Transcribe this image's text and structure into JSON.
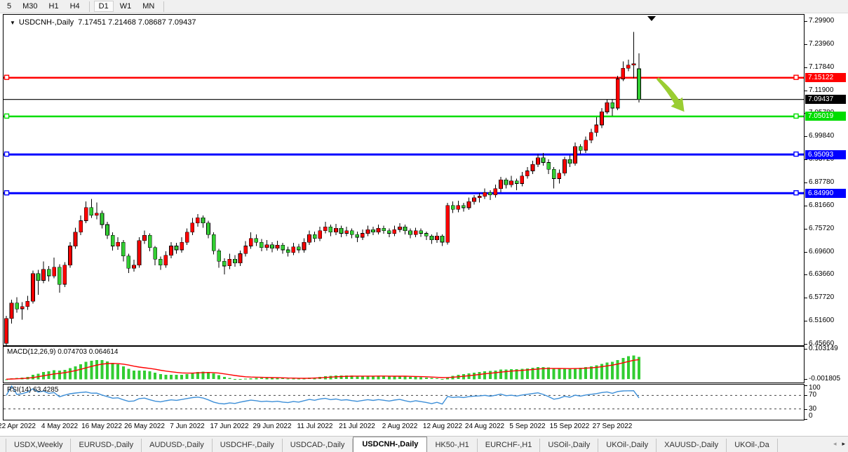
{
  "icons": {
    "dropdown": "▼",
    "tab_scroll_left": "◂",
    "tab_scroll_right": "▸",
    "bar_marker": "▼"
  },
  "toolbar": {
    "timeframes": [
      {
        "label": "5",
        "active": false,
        "group_end": false
      },
      {
        "label": "M30",
        "active": false,
        "group_end": false
      },
      {
        "label": "H1",
        "active": false,
        "group_end": false
      },
      {
        "label": "H4",
        "active": false,
        "group_end": true
      },
      {
        "label": "D1",
        "active": true,
        "group_end": false
      },
      {
        "label": "W1",
        "active": false,
        "group_end": false
      },
      {
        "label": "MN",
        "active": false,
        "group_end": true
      }
    ]
  },
  "chart_title": {
    "symbol": "USDCNH-,Daily",
    "ohlc": "7.17451 7.21468 7.08687 7.09437"
  },
  "chart_data": {
    "type": "candlestick",
    "symbol": "USDCNH",
    "timeframe": "Daily",
    "current_open": 7.17451,
    "current_high": 7.21468,
    "current_low": 7.08687,
    "current_close": 7.09437,
    "price_max": 7.299,
    "price_min": 6.4566,
    "price_axis_labels": [
      "7.29900",
      "7.23960",
      "7.17840",
      "7.11900",
      "7.05780",
      "6.99840",
      "6.93720",
      "6.87780",
      "6.81660",
      "6.75720",
      "6.69600",
      "6.63660",
      "6.57720",
      "6.51600",
      "6.45660"
    ],
    "date_labels": [
      "22 Apr 2022",
      "4 May 2022",
      "16 May 2022",
      "26 May 2022",
      "7 Jun 2022",
      "17 Jun 2022",
      "29 Jun 2022",
      "11 Jul 2022",
      "21 Jul 2022",
      "2 Aug 2022",
      "12 Aug 2022",
      "24 Aug 2022",
      "5 Sep 2022",
      "15 Sep 2022",
      "27 Sep 2022"
    ],
    "colors": {
      "bull": "#ff0000",
      "bear": "#32cd32",
      "wick": "#000000",
      "body_border": "#000000",
      "arrow": "#9acd32",
      "marker": "#000000",
      "macd_hist": "#32cd32",
      "macd_signal": "#ff0000",
      "rsi_line": "#3d8fd8",
      "rsi_level": "#444444"
    },
    "hlines": [
      {
        "price": 7.15122,
        "label": "7.15122",
        "color": "#ff0000",
        "width": 2.5,
        "handles": true
      },
      {
        "price": 7.05019,
        "label": "7.05019",
        "color": "#00dd00",
        "width": 2.5,
        "handles": true
      },
      {
        "price": 6.95093,
        "label": "6.95093",
        "color": "#0000ff",
        "width": 3,
        "handles": true
      },
      {
        "price": 6.8499,
        "label": "6.84990",
        "color": "#0000ff",
        "width": 3,
        "handles": true
      },
      {
        "price": 7.09437,
        "label": "7.09437",
        "color": "#000000",
        "width": 1.2,
        "handles": false
      }
    ],
    "candles": [
      [
        6.458,
        6.53,
        6.45,
        6.523
      ],
      [
        6.523,
        6.572,
        6.51,
        6.563
      ],
      [
        6.563,
        6.578,
        6.538,
        6.548
      ],
      [
        6.548,
        6.566,
        6.52,
        6.554
      ],
      [
        6.554,
        6.582,
        6.545,
        6.568
      ],
      [
        6.568,
        6.648,
        6.562,
        6.64
      ],
      [
        6.64,
        6.65,
        6.585,
        6.622
      ],
      [
        6.622,
        6.672,
        6.615,
        6.651
      ],
      [
        6.651,
        6.66,
        6.62,
        6.634
      ],
      [
        6.634,
        6.682,
        6.628,
        6.657
      ],
      [
        6.657,
        6.664,
        6.59,
        6.612
      ],
      [
        6.612,
        6.67,
        6.605,
        6.662
      ],
      [
        6.662,
        6.722,
        6.655,
        6.712
      ],
      [
        6.712,
        6.76,
        6.705,
        6.748
      ],
      [
        6.748,
        6.792,
        6.74,
        6.778
      ],
      [
        6.778,
        6.828,
        6.772,
        6.812
      ],
      [
        6.812,
        6.835,
        6.785,
        6.792
      ],
      [
        6.792,
        6.826,
        6.782,
        6.798
      ],
      [
        6.798,
        6.805,
        6.758,
        6.768
      ],
      [
        6.768,
        6.775,
        6.73,
        6.74
      ],
      [
        6.74,
        6.748,
        6.7,
        6.712
      ],
      [
        6.712,
        6.735,
        6.702,
        6.722
      ],
      [
        6.722,
        6.728,
        6.672,
        6.686
      ],
      [
        6.686,
        6.692,
        6.642,
        6.654
      ],
      [
        6.654,
        6.676,
        6.645,
        6.662
      ],
      [
        6.662,
        6.735,
        6.655,
        6.726
      ],
      [
        6.726,
        6.752,
        6.718,
        6.74
      ],
      [
        6.74,
        6.745,
        6.698,
        6.708
      ],
      [
        6.708,
        6.712,
        6.662,
        6.678
      ],
      [
        6.678,
        6.685,
        6.65,
        6.662
      ],
      [
        6.662,
        6.698,
        6.655,
        6.688
      ],
      [
        6.688,
        6.722,
        6.68,
        6.712
      ],
      [
        6.712,
        6.72,
        6.692,
        6.702
      ],
      [
        6.702,
        6.735,
        6.695,
        6.722
      ],
      [
        6.722,
        6.758,
        6.715,
        6.748
      ],
      [
        6.748,
        6.785,
        6.74,
        6.772
      ],
      [
        6.772,
        6.795,
        6.762,
        6.786
      ],
      [
        6.786,
        6.792,
        6.76,
        6.772
      ],
      [
        6.772,
        6.778,
        6.732,
        6.742
      ],
      [
        6.742,
        6.748,
        6.69,
        6.7
      ],
      [
        6.7,
        6.705,
        6.655,
        6.672
      ],
      [
        6.672,
        6.68,
        6.638,
        6.66
      ],
      [
        6.66,
        6.692,
        6.652,
        6.678
      ],
      [
        6.678,
        6.688,
        6.658,
        6.668
      ],
      [
        6.668,
        6.7,
        6.66,
        6.692
      ],
      [
        6.692,
        6.725,
        6.685,
        6.712
      ],
      [
        6.712,
        6.748,
        6.705,
        6.732
      ],
      [
        6.732,
        6.742,
        6.712,
        6.722
      ],
      [
        6.722,
        6.73,
        6.698,
        6.708
      ],
      [
        6.708,
        6.728,
        6.7,
        6.715
      ],
      [
        6.715,
        6.722,
        6.696,
        6.706
      ],
      [
        6.706,
        6.726,
        6.7,
        6.714
      ],
      [
        6.714,
        6.72,
        6.692,
        6.702
      ],
      [
        6.702,
        6.71,
        6.685,
        6.695
      ],
      [
        6.695,
        6.72,
        6.688,
        6.71
      ],
      [
        6.71,
        6.718,
        6.694,
        6.702
      ],
      [
        6.702,
        6.732,
        6.695,
        6.722
      ],
      [
        6.722,
        6.752,
        6.715,
        6.742
      ],
      [
        6.742,
        6.75,
        6.722,
        6.732
      ],
      [
        6.732,
        6.762,
        6.725,
        6.752
      ],
      [
        6.752,
        6.775,
        6.745,
        6.762
      ],
      [
        6.762,
        6.768,
        6.738,
        6.748
      ],
      [
        6.748,
        6.77,
        6.74,
        6.758
      ],
      [
        6.758,
        6.765,
        6.735,
        6.745
      ],
      [
        6.745,
        6.762,
        6.738,
        6.752
      ],
      [
        6.752,
        6.758,
        6.732,
        6.742
      ],
      [
        6.742,
        6.75,
        6.722,
        6.735
      ],
      [
        6.735,
        6.755,
        6.728,
        6.745
      ],
      [
        6.745,
        6.765,
        6.738,
        6.755
      ],
      [
        6.755,
        6.762,
        6.74,
        6.748
      ],
      [
        6.748,
        6.768,
        6.742,
        6.758
      ],
      [
        6.758,
        6.765,
        6.744,
        6.752
      ],
      [
        6.752,
        6.758,
        6.735,
        6.745
      ],
      [
        6.745,
        6.765,
        6.738,
        6.755
      ],
      [
        6.755,
        6.772,
        6.748,
        6.762
      ],
      [
        6.762,
        6.768,
        6.742,
        6.752
      ],
      [
        6.752,
        6.758,
        6.732,
        6.742
      ],
      [
        6.742,
        6.76,
        6.735,
        6.752
      ],
      [
        6.752,
        6.758,
        6.736,
        6.745
      ],
      [
        6.745,
        6.75,
        6.728,
        6.738
      ],
      [
        6.738,
        6.742,
        6.718,
        6.728
      ],
      [
        6.728,
        6.748,
        6.72,
        6.738
      ],
      [
        6.738,
        6.742,
        6.712,
        6.722
      ],
      [
        6.722,
        6.825,
        6.716,
        6.818
      ],
      [
        6.818,
        6.828,
        6.798,
        6.808
      ],
      [
        6.808,
        6.83,
        6.8,
        6.818
      ],
      [
        6.818,
        6.825,
        6.802,
        6.812
      ],
      [
        6.812,
        6.838,
        6.806,
        6.828
      ],
      [
        6.828,
        6.845,
        6.82,
        6.838
      ],
      [
        6.838,
        6.85,
        6.826,
        6.842
      ],
      [
        6.842,
        6.862,
        6.835,
        6.852
      ],
      [
        6.852,
        6.858,
        6.832,
        6.845
      ],
      [
        6.845,
        6.872,
        6.838,
        6.862
      ],
      [
        6.862,
        6.892,
        6.852,
        6.885
      ],
      [
        6.885,
        6.89,
        6.862,
        6.872
      ],
      [
        6.872,
        6.895,
        6.865,
        6.882
      ],
      [
        6.882,
        6.888,
        6.858,
        6.875
      ],
      [
        6.875,
        6.905,
        6.868,
        6.895
      ],
      [
        6.895,
        6.918,
        6.888,
        6.908
      ],
      [
        6.908,
        6.935,
        6.9,
        6.925
      ],
      [
        6.925,
        6.952,
        6.918,
        6.942
      ],
      [
        6.942,
        6.955,
        6.922,
        6.93
      ],
      [
        6.93,
        6.938,
        6.9,
        6.912
      ],
      [
        6.912,
        6.918,
        6.862,
        6.888
      ],
      [
        6.888,
        6.912,
        6.875,
        6.902
      ],
      [
        6.902,
        6.945,
        6.895,
        6.938
      ],
      [
        6.938,
        6.948,
        6.918,
        6.928
      ],
      [
        6.928,
        6.982,
        6.922,
        6.972
      ],
      [
        6.972,
        6.978,
        6.952,
        6.962
      ],
      [
        6.962,
        6.998,
        6.955,
        6.988
      ],
      [
        6.988,
        7.018,
        6.98,
        7.008
      ],
      [
        7.008,
        7.048,
        6.998,
        7.028
      ],
      [
        7.028,
        7.072,
        7.02,
        7.062
      ],
      [
        7.062,
        7.094,
        7.056,
        7.086
      ],
      [
        7.086,
        7.096,
        7.052,
        7.072
      ],
      [
        7.072,
        7.156,
        7.066,
        7.148
      ],
      [
        7.148,
        7.194,
        7.142,
        7.176
      ],
      [
        7.176,
        7.198,
        7.168,
        7.184
      ],
      [
        7.184,
        7.271,
        7.15,
        7.188
      ],
      [
        7.17451,
        7.21468,
        7.08687,
        7.09437
      ]
    ],
    "macd": {
      "label": "MACD(12,26,9)",
      "values_text": "0.074703 0.064614",
      "fast": 12,
      "slow": 26,
      "signal": 9,
      "axis_top": "0.103149",
      "axis_bottom": "-0.001805",
      "scale_max": 0.103149,
      "scale_min": -0.001805
    },
    "rsi": {
      "label": "RSI(14)",
      "value": "63.4285",
      "period": 14,
      "axis_labels": [
        "100",
        "70",
        "30",
        "0"
      ],
      "axis_values": [
        100,
        70,
        30,
        0
      ],
      "levels": [
        70,
        30
      ],
      "scale_max": 100,
      "scale_min": 0
    }
  },
  "tabs": {
    "items": [
      {
        "label": "USDX,Weekly",
        "active": false
      },
      {
        "label": "EURUSD-,Daily",
        "active": false
      },
      {
        "label": "AUDUSD-,Daily",
        "active": false
      },
      {
        "label": "USDCHF-,Daily",
        "active": false
      },
      {
        "label": "USDCAD-,Daily",
        "active": false
      },
      {
        "label": "USDCNH-,Daily",
        "active": true
      },
      {
        "label": "HK50-,H1",
        "active": false
      },
      {
        "label": "EURCHF-,H1",
        "active": false
      },
      {
        "label": "USOil-,Daily",
        "active": false
      },
      {
        "label": "UKOil-,Daily",
        "active": false
      },
      {
        "label": "XAUUSD-,Daily",
        "active": false
      },
      {
        "label": "UKOil-,Da",
        "active": false
      }
    ]
  }
}
